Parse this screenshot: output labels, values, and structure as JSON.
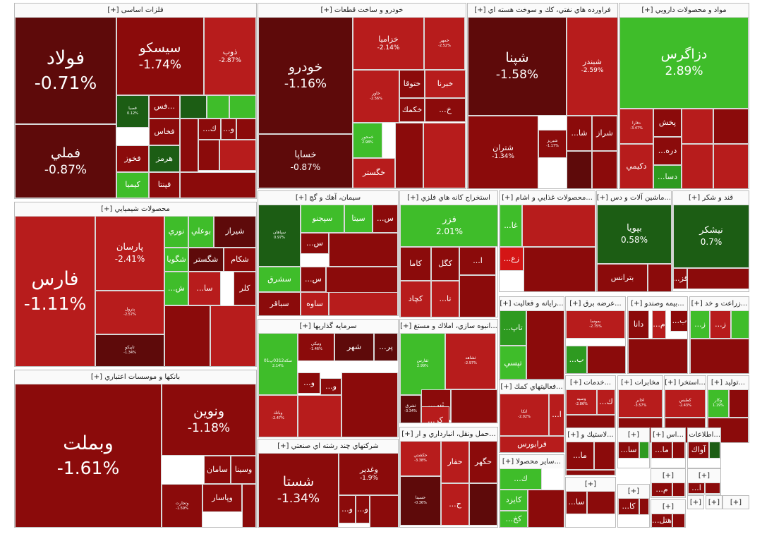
{
  "colors": {
    "dark_red": "#5e0a0a",
    "red": "#8b0b0b",
    "bright_red": "#b71c1c",
    "vivid_red": "#d41515",
    "light_green": "#3fbd2a",
    "green": "#2e9a20",
    "dark_green": "#1c5d14",
    "line": "#bcbcbc"
  },
  "sectors": [
    {
      "title": "فلزات اساسی [+]",
      "tiles": [
        {
          "name": "فولاد",
          "pct": "-0.71%"
        },
        {
          "name": "فملي",
          "pct": "-0.87%"
        },
        {
          "name": "سيسكو",
          "pct": "-1.74%"
        },
        {
          "name": "ذوب",
          "pct": "-2.87%"
        },
        {
          "name": "فصبا",
          "pct": "0.12%"
        },
        {
          "name": "فس..."
        },
        {
          "name": "فخاس"
        },
        {
          "name": "فخوز"
        },
        {
          "name": "هرمز"
        },
        {
          "name": "كيميا"
        },
        {
          "name": "فپنتا"
        },
        {
          "name": "...ك"
        },
        {
          "name": "...و"
        }
      ]
    },
    {
      "title": "خودرو و ساخت قطعات [+]",
      "tiles": [
        {
          "name": "خودرو",
          "pct": "-1.16%"
        },
        {
          "name": "خساپا",
          "pct": "-0.87%"
        },
        {
          "name": "خزاميا",
          "pct": "-2.14%"
        },
        {
          "name": "خمهر",
          "pct": "-2.52%"
        },
        {
          "name": "خاور",
          "pct": "-2.56%"
        },
        {
          "name": "ختوقا"
        },
        {
          "name": "خبرنا"
        },
        {
          "name": "خكمك"
        },
        {
          "name": "...خ"
        },
        {
          "name": "خمحور",
          "pct": "2.98%"
        },
        {
          "name": "خگستر"
        }
      ]
    },
    {
      "title": "فراورده هاي نفتي، كك و سوخت هسته اي [+]",
      "tiles": [
        {
          "name": "شپنا",
          "pct": "-1.58%"
        },
        {
          "name": "شبندر",
          "pct": "-2.59%"
        },
        {
          "name": "شتران",
          "pct": "-1.34%"
        },
        {
          "name": "شبريز",
          "pct": "-1.17%"
        },
        {
          "name": "...شا"
        },
        {
          "name": "شراز"
        }
      ]
    },
    {
      "title": "مواد و محصولات دارويي [+]",
      "tiles": [
        {
          "name": "دزاگرس",
          "pct": "2.89%"
        },
        {
          "name": "دفارا",
          "pct": "-3.47%"
        },
        {
          "name": "پخش"
        },
        {
          "name": "...دره"
        },
        {
          "name": "دكيمي"
        },
        {
          "name": "...دسا"
        }
      ]
    },
    {
      "title": "محصولات شيميايي [+]",
      "tiles": [
        {
          "name": "فارس",
          "pct": "-1.11%"
        },
        {
          "name": "پارسان",
          "pct": "-2.41%"
        },
        {
          "name": "پترول",
          "pct": "-2.57%"
        },
        {
          "name": "تاپيكو",
          "pct": "-1.34%"
        },
        {
          "name": "نوري"
        },
        {
          "name": "بوعلي"
        },
        {
          "name": "شيراز"
        },
        {
          "name": "شگويا"
        },
        {
          "name": "شگستر"
        },
        {
          "name": "شكام"
        },
        {
          "name": "...ش"
        },
        {
          "name": "...سا"
        },
        {
          "name": "كلر"
        }
      ]
    },
    {
      "title": "سيمان، آهك و گچ [+]",
      "tiles": [
        {
          "name": "سپاهان",
          "pct": "0.97%"
        },
        {
          "name": "سپجنو"
        },
        {
          "name": "سيتا"
        },
        {
          "name": "...س"
        },
        {
          "name": "...س"
        },
        {
          "name": "سشرق"
        },
        {
          "name": "...س"
        },
        {
          "name": "ساوه"
        },
        {
          "name": "سباقر"
        }
      ]
    },
    {
      "title": "استخراج كانه هاي فلزي [+]",
      "tiles": [
        {
          "name": "فزر",
          "pct": "2.01%"
        },
        {
          "name": "كاما"
        },
        {
          "name": "كگل"
        },
        {
          "name": "...ا"
        },
        {
          "name": "كچاد"
        },
        {
          "name": "...تا"
        }
      ]
    },
    {
      "title": "...محصولات غذايي و اشام [+]",
      "tiles": [
        {
          "name": "...غا"
        },
        {
          "name": "...زع"
        }
      ]
    },
    {
      "title": "...ماشين آلات و دس [+]",
      "tiles": [
        {
          "name": "بپويا",
          "pct": "0.58%"
        },
        {
          "name": "بترانس"
        }
      ]
    },
    {
      "title": "قند و شكر [+]",
      "tiles": [
        {
          "name": "نيشكر",
          "pct": "0.7%"
        },
        {
          "name": "...قز"
        }
      ]
    },
    {
      "title": "سرمايه گذاريها [+]",
      "tiles": [
        {
          "name": "سكه0312پ01",
          "pct": "2.14%"
        },
        {
          "name": "ونيكي",
          "pct": "-1.46%"
        },
        {
          "name": "شهر"
        },
        {
          "name": "...پر"
        },
        {
          "name": "...و"
        },
        {
          "name": "...و"
        },
        {
          "name": "وبانك",
          "pct": "-2.47%"
        }
      ]
    },
    {
      "title": "...انبوه سازي، املاك و مستغ [+]",
      "tiles": [
        {
          "name": "ثفارس",
          "pct": "2.99%"
        },
        {
          "name": "ثشاهد",
          "pct": "-2.97%"
        },
        {
          "name": "ثشرق",
          "pct": "-3.34%"
        },
        {
          "name": "...ثپر"
        },
        {
          "name": "...كر"
        }
      ]
    },
    {
      "title": "...رايانه و فعاليت [+]",
      "tiles": [
        {
          "name": "...تاپ"
        },
        {
          "name": "تپسي"
        }
      ]
    },
    {
      "title": "...عرضه برق [+]",
      "tiles": [
        {
          "name": "بموسا",
          "pct": "-2.75%"
        },
        {
          "name": "...ب"
        }
      ]
    },
    {
      "title": "...بيمه وصندو [+]",
      "tiles": [
        {
          "name": "دانا"
        },
        {
          "name": "...م"
        },
        {
          "name": "...ب"
        }
      ]
    },
    {
      "title": "...زراعت و خد [+]",
      "tiles": [
        {
          "name": "...ز"
        },
        {
          "name": "...ز"
        }
      ]
    },
    {
      "title": "بانكها و موسسات اعتباري [+]",
      "tiles": [
        {
          "name": "وبملت",
          "pct": "-1.61%"
        },
        {
          "name": "ونوين",
          "pct": "-1.18%"
        },
        {
          "name": "سامان"
        },
        {
          "name": "وسينا"
        },
        {
          "name": "وتجارت",
          "pct": "-1.59%"
        },
        {
          "name": "وپاسار"
        }
      ]
    },
    {
      "title": "شركتهاي چند رشته اي صنعتي [+]",
      "tiles": [
        {
          "name": "شستا",
          "pct": "-1.34%"
        },
        {
          "name": "وغدير",
          "pct": "-1.9%"
        },
        {
          "name": "...و"
        },
        {
          "name": "...و"
        }
      ]
    },
    {
      "title": "...حمل ونقل، انبارداري و ار [+]",
      "tiles": [
        {
          "name": "حكشتي",
          "pct": "-3.38%"
        },
        {
          "name": "حفار"
        },
        {
          "name": "حگهر"
        },
        {
          "name": "حسينا",
          "pct": "-0.36%"
        },
        {
          "name": "...ح"
        }
      ]
    },
    {
      "title": "...فعاليتهاي كمك [+]",
      "tiles": [
        {
          "name": "اتكا",
          "pct": "-2.02%"
        },
        {
          "name": "...ا"
        },
        {
          "name": "فرابورس"
        }
      ]
    },
    {
      "title": "...خدمات [+]",
      "tiles": [
        {
          "name": "وسپه",
          "pct": "-2.86%"
        },
        {
          "name": "...ك"
        }
      ]
    },
    {
      "title": "مخابرات [+]",
      "tiles": [
        {
          "name": "اخابر",
          "pct": "-3.57%"
        }
      ]
    },
    {
      "title": "...استخرا [+]",
      "tiles": [
        {
          "name": "كطبس",
          "pct": "-2.43%"
        }
      ]
    },
    {
      "title": "...توليد [+]",
      "tiles": [
        {
          "name": "وكار",
          "pct": "1.19%"
        }
      ]
    },
    {
      "title": "...سایر محصولا [+]",
      "tiles": [
        {
          "name": "...ك"
        },
        {
          "name": "كايزد"
        },
        {
          "name": "...كخ"
        }
      ]
    },
    {
      "title": "...لاستيك و [+]",
      "tiles": [
        {
          "name": "...ما"
        }
      ]
    },
    {
      "title": "[+]",
      "tiles": [
        {
          "name": "...سا"
        }
      ]
    },
    {
      "title": "...اس [+]",
      "tiles": [
        {
          "name": "...ما"
        }
      ]
    },
    {
      "title": "...اطلاعات [+]",
      "tiles": [
        {
          "name": "آواك"
        }
      ]
    },
    {
      "title": "[+]",
      "tiles": [
        {
          "name": "...سا"
        }
      ]
    },
    {
      "title": "[+]",
      "tiles": [
        {
          "name": "...كا"
        }
      ]
    },
    {
      "title": "[+]",
      "tiles": [
        {
          "name": "...م"
        }
      ]
    },
    {
      "title": "[+]",
      "tiles": [
        {
          "name": "...ا"
        }
      ]
    },
    {
      "title": "[+]",
      "tiles": [
        {
          "name": "...هتل"
        }
      ]
    },
    {
      "title": "[+]",
      "tiles": []
    },
    {
      "title": "[+]",
      "tiles": []
    },
    {
      "title": "[+]",
      "tiles": []
    }
  ]
}
